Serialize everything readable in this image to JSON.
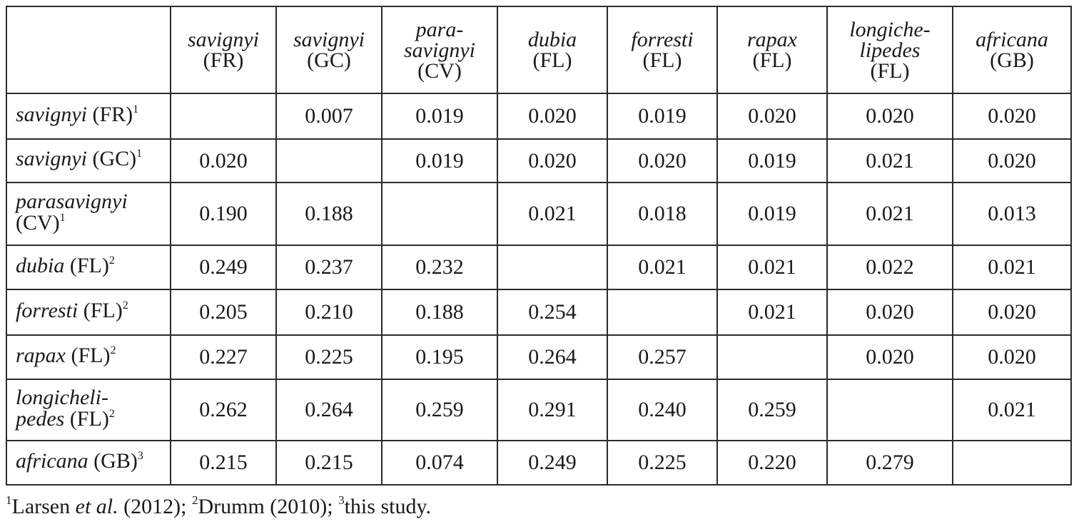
{
  "columns": [
    {
      "name_lines": [
        "savignyi"
      ],
      "loc": "(FR)"
    },
    {
      "name_lines": [
        "savignyi"
      ],
      "loc": "(GC)"
    },
    {
      "name_lines": [
        "para-",
        "savignyi"
      ],
      "loc": "(CV)"
    },
    {
      "name_lines": [
        "dubia"
      ],
      "loc": "(FL)"
    },
    {
      "name_lines": [
        "forresti"
      ],
      "loc": "(FL)"
    },
    {
      "name_lines": [
        "rapax"
      ],
      "loc": "(FL)"
    },
    {
      "name_lines": [
        "longiche-",
        "lipedes"
      ],
      "loc": "(FL)"
    },
    {
      "name_lines": [
        "africana"
      ],
      "loc": "(GB)"
    }
  ],
  "rows": [
    {
      "name": "savignyi",
      "loc": "(FR)",
      "ref": "1",
      "cells": [
        "",
        "0.007",
        "0.019",
        "0.020",
        "0.019",
        "0.020",
        "0.020",
        "0.020"
      ]
    },
    {
      "name": "savignyi",
      "loc": "(GC)",
      "ref": "1",
      "cells": [
        "0.020",
        "",
        "0.019",
        "0.020",
        "0.020",
        "0.019",
        "0.021",
        "0.020"
      ]
    },
    {
      "name": "parasavignyi",
      "loc": "(CV)",
      "ref": "1",
      "cells": [
        "0.190",
        "0.188",
        "",
        "0.021",
        "0.018",
        "0.019",
        "0.021",
        "0.013"
      ]
    },
    {
      "name": "dubia",
      "loc": "(FL)",
      "ref": "2",
      "cells": [
        "0.249",
        "0.237",
        "0.232",
        "",
        "0.021",
        "0.021",
        "0.022",
        "0.021"
      ]
    },
    {
      "name": "forresti",
      "loc": "(FL)",
      "ref": "2",
      "cells": [
        "0.205",
        "0.210",
        "0.188",
        "0.254",
        "",
        "0.021",
        "0.020",
        "0.020"
      ]
    },
    {
      "name": "rapax",
      "loc": "(FL)",
      "ref": "2",
      "cells": [
        "0.227",
        "0.225",
        "0.195",
        "0.264",
        "0.257",
        "",
        "0.020",
        "0.020"
      ]
    },
    {
      "name": "longicheli-",
      "name2": "pedes",
      "loc": "(FL)",
      "ref": "2",
      "cells": [
        "0.262",
        "0.264",
        "0.259",
        "0.291",
        "0.240",
        "0.259",
        "",
        "0.021"
      ]
    },
    {
      "name": "africana",
      "loc": "(GB)",
      "ref": "3",
      "cells": [
        "0.215",
        "0.215",
        "0.074",
        "0.249",
        "0.225",
        "0.220",
        "0.279",
        ""
      ]
    }
  ],
  "footnote": {
    "m1": "1",
    "t1": "Larsen ",
    "etal": "et al.",
    "t2": " (2012); ",
    "m2": "2",
    "t3": "Drumm (2010); ",
    "m3": "3",
    "t4": "this study."
  }
}
